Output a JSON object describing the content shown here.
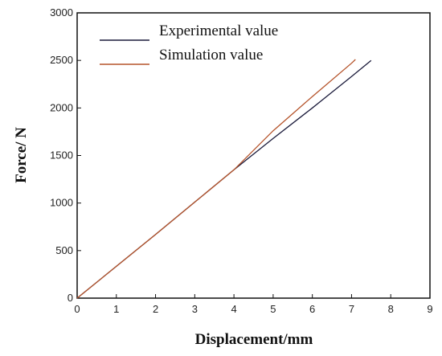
{
  "chart_data": {
    "type": "line",
    "xlabel": "Displacement/mm",
    "ylabel": "Force/ N",
    "xlim": [
      0,
      9
    ],
    "ylim": [
      0,
      3000
    ],
    "xticks": [
      0,
      1,
      2,
      3,
      4,
      5,
      6,
      7,
      8,
      9
    ],
    "yticks": [
      0,
      500,
      1000,
      1500,
      2000,
      2500,
      3000
    ],
    "grid": false,
    "legend": "top-left",
    "series": [
      {
        "name": "Experimental value",
        "color": "#1a1a3a",
        "x": [
          0,
          1,
          2,
          3,
          4,
          5,
          6,
          7,
          7.5
        ],
        "y": [
          0,
          335,
          670,
          1010,
          1350,
          1680,
          2000,
          2330,
          2500
        ]
      },
      {
        "name": "Simulation value",
        "color": "#b5532a",
        "x": [
          0,
          1,
          2,
          3,
          4,
          5,
          6,
          7,
          7.1
        ],
        "y": [
          0,
          335,
          670,
          1010,
          1350,
          1760,
          2120,
          2470,
          2510
        ]
      }
    ]
  }
}
